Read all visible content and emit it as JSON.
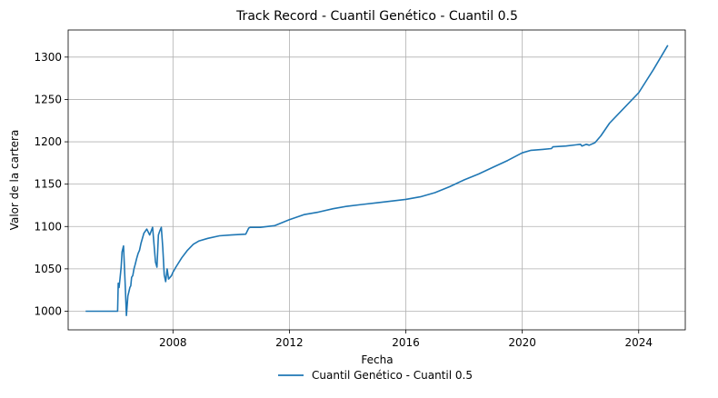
{
  "chart_data": {
    "type": "line",
    "title": "Track Record - Cuantil Genético - Cuantil 0.5",
    "xlabel": "Fecha",
    "ylabel": "Valor de la cartera",
    "xlim": [
      2004.4,
      2025.6
    ],
    "ylim": [
      978,
      1332
    ],
    "x_ticks": [
      2008,
      2012,
      2016,
      2020,
      2024
    ],
    "y_ticks": [
      1000,
      1050,
      1100,
      1150,
      1200,
      1250,
      1300
    ],
    "grid": true,
    "legend_position": "bottom-center",
    "colors": {
      "series": "#1f77b4"
    },
    "series": [
      {
        "name": "Cuantil Genético - Cuantil 0.5",
        "x": [
          2005.0,
          2006.1,
          2006.12,
          2006.15,
          2006.18,
          2006.22,
          2006.25,
          2006.3,
          2006.33,
          2006.36,
          2006.4,
          2006.45,
          2006.48,
          2006.52,
          2006.55,
          2006.58,
          2006.62,
          2006.66,
          2006.7,
          2006.75,
          2006.8,
          2006.85,
          2006.9,
          2007.0,
          2007.1,
          2007.2,
          2007.3,
          2007.4,
          2007.45,
          2007.5,
          2007.55,
          2007.6,
          2007.65,
          2007.7,
          2007.75,
          2007.8,
          2007.85,
          2007.9,
          2007.95,
          2008.0,
          2008.1,
          2008.3,
          2008.5,
          2008.7,
          2008.9,
          2009.2,
          2009.6,
          2010.0,
          2010.5,
          2010.6,
          2010.65,
          2011.0,
          2011.5,
          2012.0,
          2012.5,
          2013.0,
          2013.5,
          2014.0,
          2014.5,
          2015.0,
          2015.5,
          2016.0,
          2016.5,
          2017.0,
          2017.5,
          2018.0,
          2018.5,
          2019.0,
          2019.5,
          2020.0,
          2020.3,
          2020.7,
          2021.0,
          2021.05,
          2021.5,
          2022.0,
          2022.05,
          2022.2,
          2022.3,
          2022.5,
          2022.7,
          2023.0,
          2023.5,
          2024.0,
          2024.5,
          2025.0
        ],
        "values": [
          1000,
          1000,
          1033,
          1028,
          1038,
          1052,
          1070,
          1077,
          1055,
          1030,
          995,
          1018,
          1022,
          1028,
          1030,
          1040,
          1042,
          1050,
          1055,
          1062,
          1068,
          1072,
          1080,
          1092,
          1097,
          1090,
          1099,
          1058,
          1052,
          1090,
          1095,
          1099,
          1075,
          1043,
          1035,
          1050,
          1038,
          1040,
          1042,
          1046,
          1052,
          1063,
          1072,
          1079,
          1083,
          1086,
          1089,
          1090,
          1091,
          1098,
          1099,
          1099,
          1101,
          1108,
          1114,
          1117,
          1121,
          1124,
          1126,
          1128,
          1130,
          1132,
          1135,
          1140,
          1147,
          1155,
          1162,
          1170,
          1178,
          1187,
          1190,
          1191,
          1192,
          1194,
          1195,
          1197,
          1195,
          1197,
          1196,
          1199,
          1207,
          1222,
          1240,
          1258,
          1285,
          1314
        ]
      }
    ]
  }
}
